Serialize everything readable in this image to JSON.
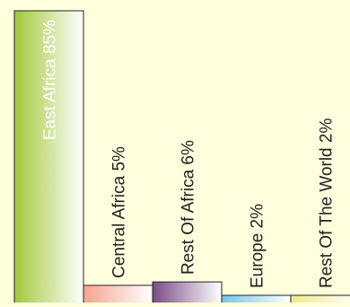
{
  "chart_data": {
    "type": "bar",
    "categories": [
      "East Africa",
      "Central Africa",
      "Rest Of Africa",
      "Europe",
      "Rest Of The World"
    ],
    "values": [
      85,
      5,
      6,
      2,
      2
    ],
    "value_labels": [
      "East Africa 85%",
      "Central Africa 5%",
      "Rest Of Africa  6%",
      "Europe 2%",
      "Rest Of The World 2%"
    ],
    "colors": [
      "#a2c83a",
      "#f5a48f",
      "#7a4b86",
      "#79c4ea",
      "#f1e98a"
    ],
    "xlabel": "",
    "ylabel": "",
    "grid": false,
    "legend": "none"
  }
}
